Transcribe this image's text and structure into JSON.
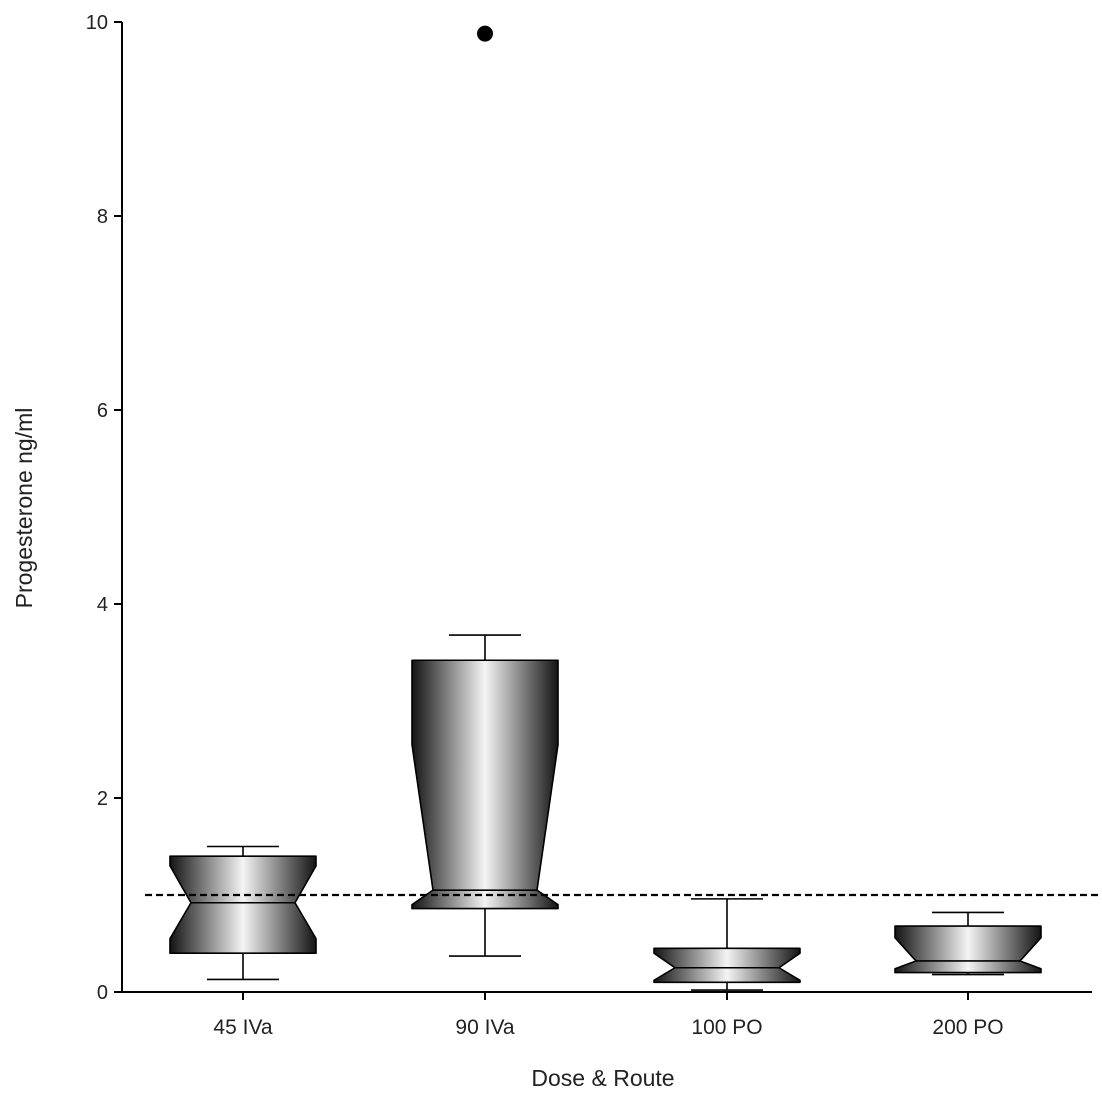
{
  "chart_data": {
    "type": "box",
    "xlabel": "Dose & Route",
    "ylabel": "Progesterone ng/ml",
    "ylim": [
      0,
      10
    ],
    "yticks": [
      0,
      2,
      4,
      6,
      8,
      10
    ],
    "categories": [
      "45 IVa",
      "90 IVa",
      "100 PO",
      "200 PO"
    ],
    "boxes": [
      {
        "whisker_low": 0.13,
        "q1": 0.4,
        "notch_low": 0.55,
        "median": 0.92,
        "notch_high": 1.3,
        "q3": 1.4,
        "whisker_high": 1.5,
        "outliers": []
      },
      {
        "whisker_low": 0.37,
        "q1": 0.86,
        "notch_low": 0.9,
        "median": 1.05,
        "notch_high": 2.55,
        "q3": 3.42,
        "whisker_high": 3.68,
        "outliers": [
          9.88
        ]
      },
      {
        "whisker_low": 0.02,
        "q1": 0.1,
        "notch_low": 0.12,
        "median": 0.25,
        "notch_high": 0.4,
        "q3": 0.45,
        "whisker_high": 0.96,
        "outliers": []
      },
      {
        "whisker_low": 0.18,
        "q1": 0.2,
        "notch_low": 0.24,
        "median": 0.32,
        "notch_high": 0.56,
        "q3": 0.68,
        "whisker_high": 0.82,
        "outliers": []
      }
    ],
    "reference_line": 1.0,
    "grid": false
  }
}
